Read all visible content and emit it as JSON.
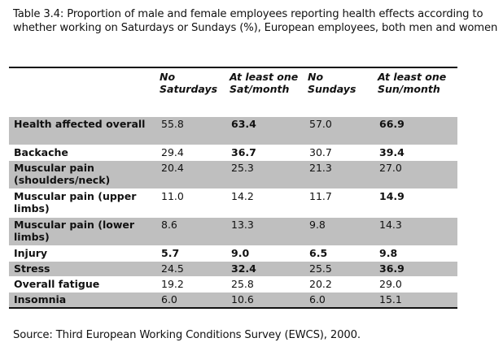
{
  "caption": "Table 3.4: Proportion of male and female employees reporting health effects according to whether working on Saturdays or Sundays (%), European employees, both men and women",
  "headers": [
    "",
    "No Saturdays",
    "At least one Sat/month",
    "No Sundays",
    "At least one Sun/month"
  ],
  "rows": [
    {
      "label": "Health affected overall",
      "values": [
        "55.8",
        "63.4",
        "57.0",
        "66.9"
      ],
      "bold": [
        false,
        true,
        false,
        true
      ]
    },
    {
      "label": "Backache",
      "values": [
        "29.4",
        "36.7",
        "30.7",
        "39.4"
      ],
      "bold": [
        false,
        true,
        false,
        true
      ]
    },
    {
      "label": "Muscular pain (shoulders/neck)",
      "values": [
        "20.4",
        "25.3",
        "21.3",
        "27.0"
      ],
      "bold": [
        false,
        false,
        false,
        false
      ]
    },
    {
      "label": "Muscular pain (upper limbs)",
      "values": [
        "11.0",
        "14.2",
        "11.7",
        "14.9"
      ],
      "bold": [
        false,
        false,
        false,
        true
      ]
    },
    {
      "label": "Muscular pain (lower limbs)",
      "values": [
        "8.6",
        "13.3",
        "9.8",
        "14.3"
      ],
      "bold": [
        false,
        false,
        false,
        false
      ]
    },
    {
      "label": "Injury",
      "values": [
        "5.7",
        "9.0",
        "6.5",
        "9.8"
      ],
      "bold": [
        true,
        true,
        true,
        true
      ]
    },
    {
      "label": "Stress",
      "values": [
        "24.5",
        "32.4",
        "25.5",
        "36.9"
      ],
      "bold": [
        false,
        true,
        false,
        true
      ]
    },
    {
      "label": "Overall fatigue",
      "values": [
        "19.2",
        "25.8",
        "20.2",
        "29.0"
      ],
      "bold": [
        false,
        false,
        false,
        false
      ]
    },
    {
      "label": "Insomnia",
      "values": [
        "6.0",
        "10.6",
        "6.0",
        "15.1"
      ],
      "bold": [
        false,
        false,
        false,
        false
      ]
    }
  ],
  "source": "Source: Third European Working Conditions Survey (EWCS), 2000.",
  "colors": {
    "shade": "#bfbfbf"
  }
}
